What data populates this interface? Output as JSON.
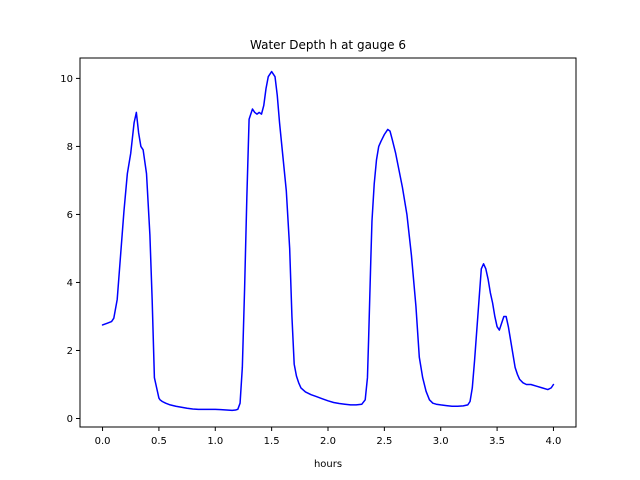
{
  "chart_data": {
    "type": "line",
    "title": "Water Depth h at gauge 6",
    "xlabel": "hours",
    "ylabel": "",
    "xlim": [
      -0.2,
      4.2
    ],
    "ylim": [
      -0.25,
      10.6
    ],
    "xticks": [
      0.0,
      0.5,
      1.0,
      1.5,
      2.0,
      2.5,
      3.0,
      3.5,
      4.0
    ],
    "xtick_labels": [
      "0.0",
      "0.5",
      "1.0",
      "1.5",
      "2.0",
      "2.5",
      "3.0",
      "3.5",
      "4.0"
    ],
    "yticks": [
      0,
      2,
      4,
      6,
      8,
      10
    ],
    "ytick_labels": [
      "0",
      "2",
      "4",
      "6",
      "8",
      "10"
    ],
    "grid": false,
    "series": [
      {
        "color": "#0000ff",
        "x": [
          0.0,
          0.04,
          0.08,
          0.1,
          0.13,
          0.16,
          0.19,
          0.22,
          0.25,
          0.28,
          0.3,
          0.32,
          0.34,
          0.36,
          0.39,
          0.42,
          0.44,
          0.46,
          0.48,
          0.5,
          0.51,
          0.53,
          0.56,
          0.6,
          0.65,
          0.7,
          0.75,
          0.8,
          0.85,
          0.9,
          0.95,
          1.0,
          1.05,
          1.1,
          1.15,
          1.18,
          1.2,
          1.22,
          1.24,
          1.26,
          1.28,
          1.3,
          1.33,
          1.35,
          1.37,
          1.39,
          1.41,
          1.43,
          1.45,
          1.47,
          1.5,
          1.53,
          1.55,
          1.57,
          1.6,
          1.63,
          1.66,
          1.68,
          1.7,
          1.72,
          1.74,
          1.76,
          1.8,
          1.85,
          1.9,
          1.95,
          2.0,
          2.05,
          2.1,
          2.15,
          2.2,
          2.25,
          2.3,
          2.33,
          2.35,
          2.36,
          2.37,
          2.38,
          2.39,
          2.41,
          2.43,
          2.45,
          2.47,
          2.5,
          2.53,
          2.55,
          2.57,
          2.6,
          2.63,
          2.66,
          2.7,
          2.74,
          2.78,
          2.81,
          2.84,
          2.87,
          2.9,
          2.93,
          2.96,
          3.0,
          3.05,
          3.1,
          3.15,
          3.2,
          3.24,
          3.26,
          3.28,
          3.3,
          3.32,
          3.34,
          3.36,
          3.38,
          3.4,
          3.42,
          3.44,
          3.46,
          3.48,
          3.5,
          3.52,
          3.54,
          3.56,
          3.58,
          3.6,
          3.62,
          3.64,
          3.66,
          3.68,
          3.7,
          3.73,
          3.76,
          3.8,
          3.85,
          3.9,
          3.95,
          3.98,
          4.0
        ],
        "y": [
          2.75,
          2.8,
          2.85,
          2.95,
          3.5,
          4.8,
          6.1,
          7.2,
          7.8,
          8.7,
          9.0,
          8.4,
          8.0,
          7.9,
          7.2,
          5.4,
          3.5,
          1.2,
          0.9,
          0.6,
          0.55,
          0.5,
          0.45,
          0.4,
          0.36,
          0.33,
          0.3,
          0.28,
          0.27,
          0.27,
          0.27,
          0.27,
          0.26,
          0.25,
          0.24,
          0.25,
          0.27,
          0.45,
          1.5,
          3.8,
          6.5,
          8.8,
          9.1,
          9.0,
          8.95,
          9.0,
          8.95,
          9.2,
          9.7,
          10.05,
          10.2,
          10.05,
          9.5,
          8.7,
          7.7,
          6.7,
          5.0,
          3.0,
          1.6,
          1.25,
          1.05,
          0.9,
          0.78,
          0.7,
          0.64,
          0.58,
          0.52,
          0.47,
          0.44,
          0.42,
          0.4,
          0.4,
          0.42,
          0.55,
          1.2,
          2.3,
          3.5,
          4.7,
          5.8,
          6.9,
          7.6,
          8.0,
          8.15,
          8.35,
          8.5,
          8.45,
          8.2,
          7.8,
          7.3,
          6.8,
          6.0,
          4.8,
          3.3,
          1.8,
          1.2,
          0.8,
          0.55,
          0.45,
          0.42,
          0.4,
          0.38,
          0.36,
          0.36,
          0.37,
          0.4,
          0.5,
          0.9,
          1.7,
          2.6,
          3.5,
          4.4,
          4.55,
          4.4,
          4.1,
          3.7,
          3.4,
          3.0,
          2.7,
          2.6,
          2.8,
          3.0,
          3.0,
          2.7,
          2.3,
          1.9,
          1.5,
          1.3,
          1.15,
          1.05,
          1.0,
          1.0,
          0.95,
          0.9,
          0.85,
          0.9,
          1.0
        ]
      }
    ]
  }
}
